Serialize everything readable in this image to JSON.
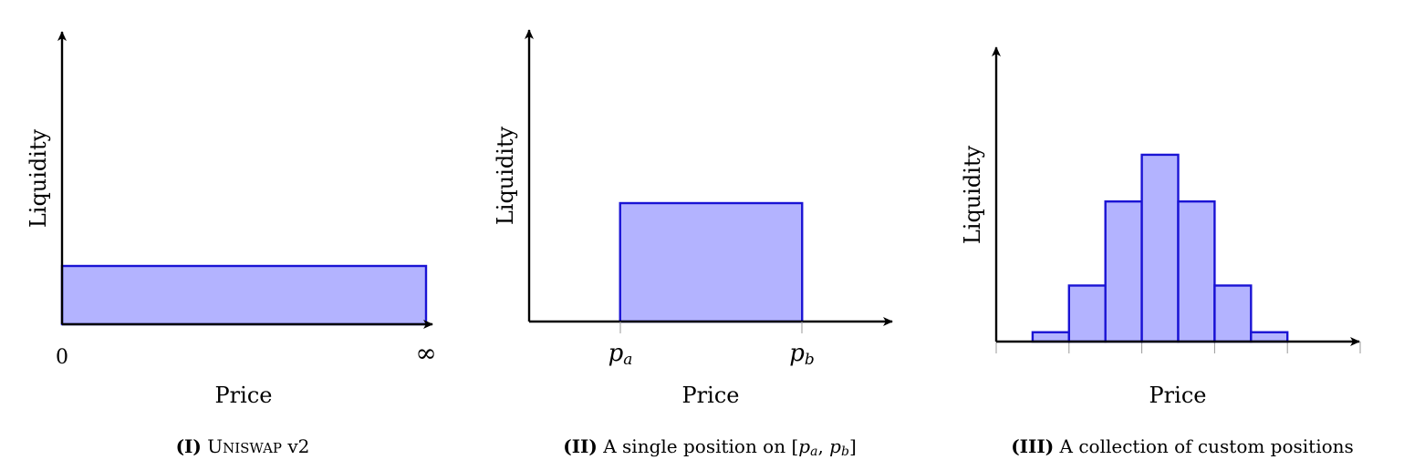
{
  "colors": {
    "bar_fill": "#b3b3ff",
    "bar_stroke": "#1a13d4",
    "axis": "#000000"
  },
  "chart_data": [
    {
      "type": "bar",
      "panel": "I",
      "caption": {
        "tag": "(I)",
        "uniswap_initial": "U",
        "uniswap_rest": "NISWAP",
        "version": "v2"
      },
      "xlabel": "Price",
      "ylabel": "Liquidity",
      "tick_labels": [
        "0",
        "∞"
      ],
      "bars": [
        {
          "start": 0,
          "end": 1,
          "value": 1
        }
      ],
      "xlim": [
        0,
        1
      ],
      "ylim": [
        0,
        5
      ]
    },
    {
      "type": "bar",
      "panel": "II",
      "caption": {
        "tag": "(II)",
        "text": "A single position on",
        "bracket_open": "[",
        "p": "p",
        "a": "a",
        "comma": ",",
        "b": "b",
        "bracket_close": "]"
      },
      "xlabel": "Price",
      "ylabel": "Liquidity",
      "tick_labels": {
        "pa": {
          "p": "p",
          "sub": "a"
        },
        "pb": {
          "p": "p",
          "sub": "b"
        }
      },
      "bars": [
        {
          "start": 1,
          "end": 3,
          "value": 2
        }
      ],
      "xlim": [
        0,
        4
      ],
      "ylim": [
        0,
        4.8
      ]
    },
    {
      "type": "bar",
      "panel": "III",
      "caption": {
        "tag": "(III)",
        "text": "A collection of custom positions"
      },
      "xlabel": "Price",
      "ylabel": "Liquidity",
      "categories": [
        1,
        2,
        3,
        4,
        5,
        6,
        7
      ],
      "values": [
        0.2,
        1.2,
        3,
        4,
        3,
        1.2,
        0.2
      ],
      "xlim": [
        0,
        10
      ],
      "ylim": [
        0,
        6.3
      ],
      "minor_ticks": [
        0,
        2,
        4,
        6,
        8,
        10
      ]
    }
  ]
}
